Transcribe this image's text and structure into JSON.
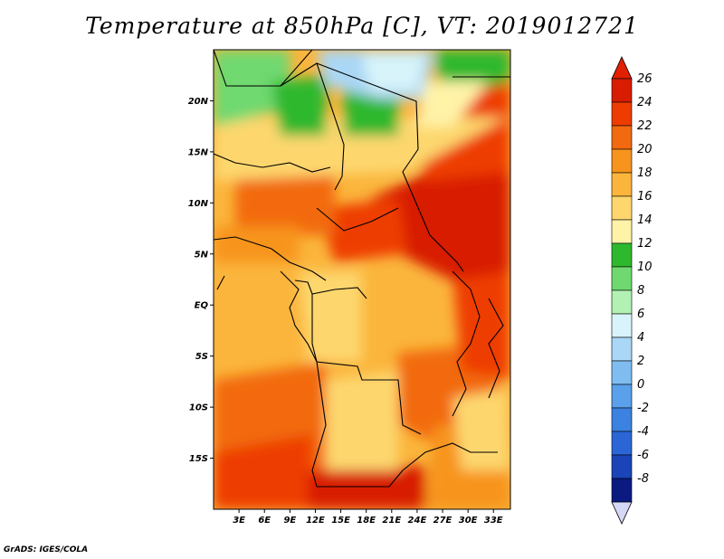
{
  "title": "Temperature at 850hPa [C], VT: 2019012721",
  "credit": "GrADS: IGES/COLA",
  "map": {
    "lon_range": [
      0,
      35
    ],
    "lat_range": [
      -20,
      25
    ],
    "lat_ticks": [
      {
        "value": 20,
        "label": "20N"
      },
      {
        "value": 15,
        "label": "15N"
      },
      {
        "value": 10,
        "label": "10N"
      },
      {
        "value": 5,
        "label": "5N"
      },
      {
        "value": 0,
        "label": "EQ"
      },
      {
        "value": -5,
        "label": "5S"
      },
      {
        "value": -10,
        "label": "10S"
      },
      {
        "value": -15,
        "label": "15S"
      }
    ],
    "lon_ticks": [
      {
        "value": 3,
        "label": "3E"
      },
      {
        "value": 6,
        "label": "6E"
      },
      {
        "value": 9,
        "label": "9E"
      },
      {
        "value": 12,
        "label": "12E"
      },
      {
        "value": 15,
        "label": "15E"
      },
      {
        "value": 18,
        "label": "18E"
      },
      {
        "value": 21,
        "label": "21E"
      },
      {
        "value": 24,
        "label": "24E"
      },
      {
        "value": 27,
        "label": "27E"
      },
      {
        "value": 30,
        "label": "30E"
      },
      {
        "value": 33,
        "label": "33E"
      }
    ]
  },
  "colorbar": {
    "levels": [
      {
        "label": "26",
        "color": "#d81c00"
      },
      {
        "label": "24",
        "color": "#ee3c00"
      },
      {
        "label": "22",
        "color": "#f26a10"
      },
      {
        "label": "20",
        "color": "#f7941d"
      },
      {
        "label": "18",
        "color": "#fbb53c"
      },
      {
        "label": "16",
        "color": "#fdd76e"
      },
      {
        "label": "14",
        "color": "#fff3a8"
      },
      {
        "label": "12",
        "color": "#2eb82e"
      },
      {
        "label": "10",
        "color": "#6fd96f"
      },
      {
        "label": "8",
        "color": "#b3f0b3"
      },
      {
        "label": "6",
        "color": "#d8f4fa"
      },
      {
        "label": "4",
        "color": "#aad7f5"
      },
      {
        "label": "2",
        "color": "#7fbdf0"
      },
      {
        "label": "0",
        "color": "#5aa0ea"
      },
      {
        "label": "-2",
        "color": "#3c82e0"
      },
      {
        "label": "-4",
        "color": "#2a66d6"
      },
      {
        "label": "-6",
        "color": "#1a44b8"
      },
      {
        "label": "-8",
        "color": "#0a1a80"
      }
    ],
    "top_color": "#e02000",
    "bottom_color": "#d4d8f5"
  }
}
